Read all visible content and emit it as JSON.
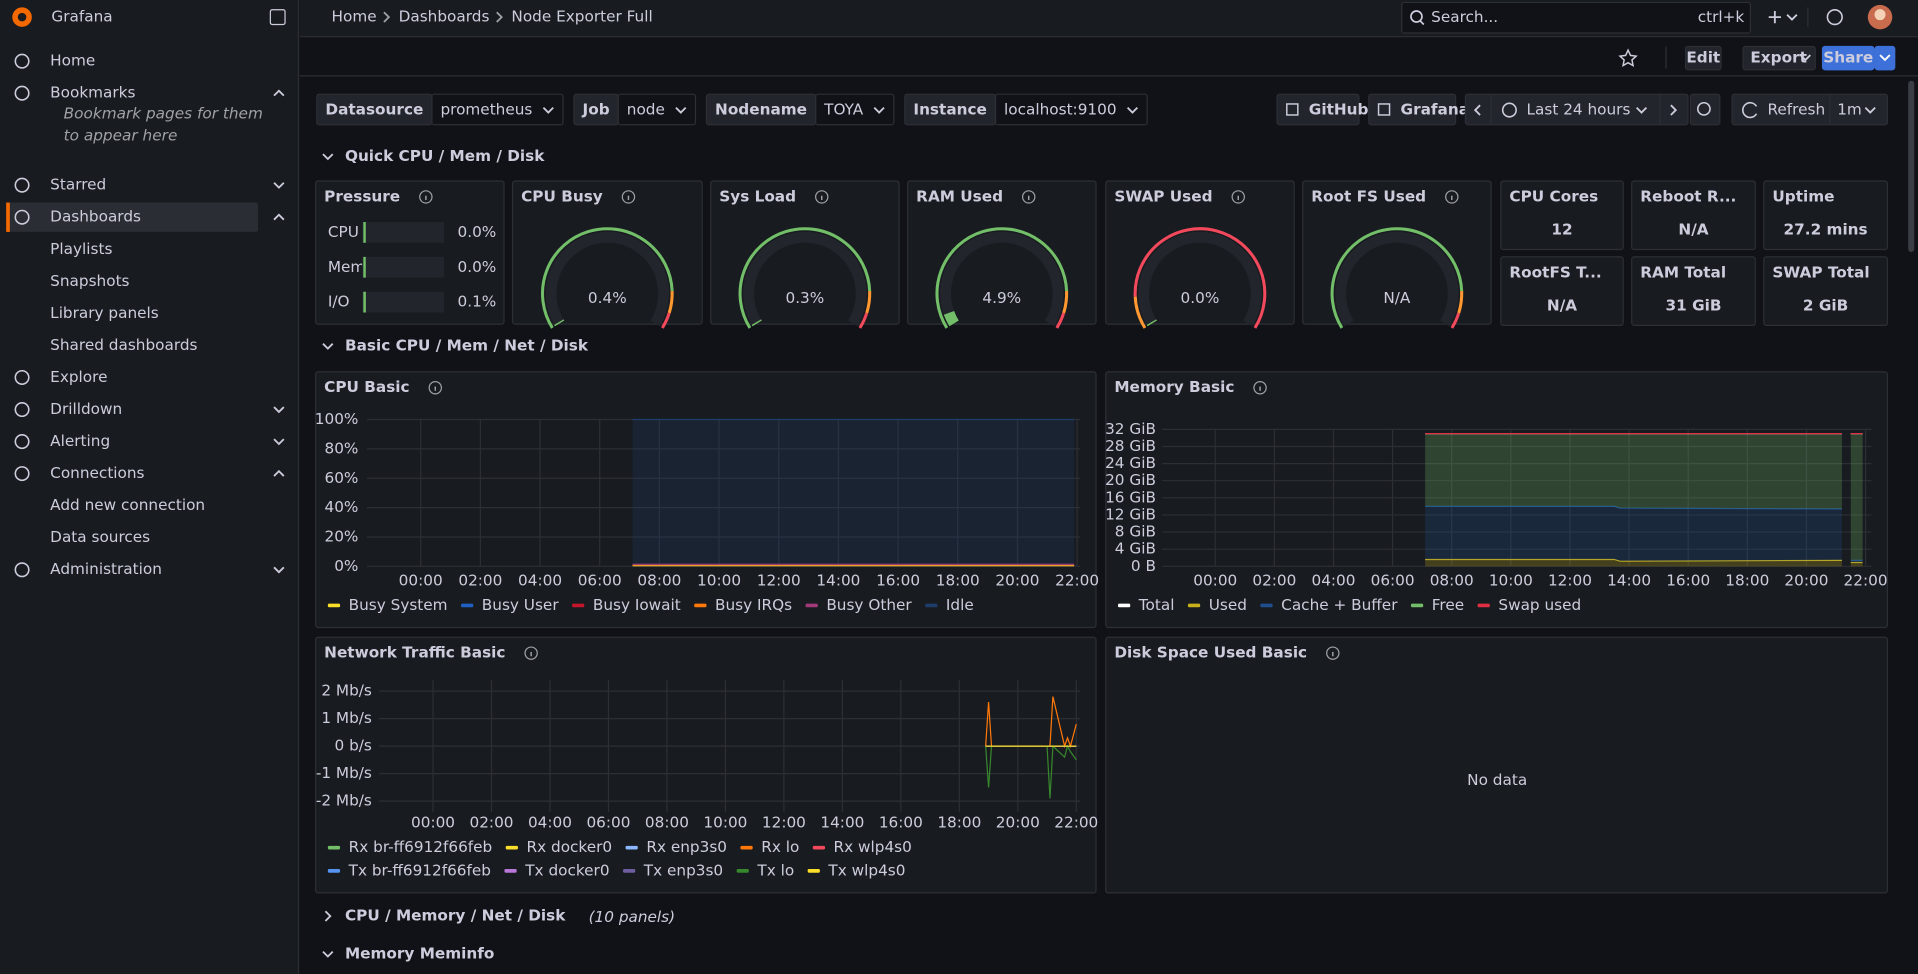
{
  "sidebar": {
    "brand": "Grafana",
    "items": [
      {
        "label": "Home"
      },
      {
        "label": "Bookmarks",
        "expanded": true,
        "note": "Bookmark pages for them to appear here"
      },
      {
        "label": "Starred",
        "expanded": false
      },
      {
        "label": "Dashboards",
        "expanded": true,
        "active": true,
        "children": [
          "Playlists",
          "Snapshots",
          "Library panels",
          "Shared dashboards"
        ]
      },
      {
        "label": "Explore"
      },
      {
        "label": "Drilldown",
        "expanded": false
      },
      {
        "label": "Alerting",
        "expanded": false
      },
      {
        "label": "Connections",
        "expanded": true,
        "children": [
          "Add new connection",
          "Data sources"
        ]
      },
      {
        "label": "Administration",
        "expanded": false
      }
    ]
  },
  "topbar": {
    "breadcrumbs": [
      "Home",
      "Dashboards",
      "Node Exporter Full"
    ],
    "search": "Search...",
    "shortcut": "ctrl+k"
  },
  "toolbar": {
    "edit": "Edit",
    "export": "Export",
    "share": "Share"
  },
  "variables": [
    {
      "label": "Datasource",
      "value": "prometheus"
    },
    {
      "label": "Job",
      "value": "node"
    },
    {
      "label": "Nodename",
      "value": "TOYA"
    },
    {
      "label": "Instance",
      "value": "localhost:9100"
    }
  ],
  "links": [
    "GitHub",
    "Grafana"
  ],
  "time_range": "Last 24 hours",
  "refresh": "Refresh",
  "refresh_interval": "1m",
  "rows": [
    {
      "title": "Quick CPU / Mem / Disk",
      "collapsed": false
    },
    {
      "title": "Basic CPU / Mem / Net / Disk",
      "collapsed": false
    },
    {
      "title": "CPU / Memory / Net / Disk",
      "collapsed": true,
      "count": "(10 panels)"
    },
    {
      "title": "Memory Meminfo",
      "collapsed": false
    }
  ],
  "panels": {
    "pressure": {
      "title": "Pressure",
      "items": [
        {
          "label": "CPU",
          "value": 0.0,
          "value_label": "0.0%"
        },
        {
          "label": "Mem",
          "value": 0.0,
          "value_label": "0.0%"
        },
        {
          "label": "I/O",
          "value": 0.1,
          "value_label": "0.1%"
        }
      ]
    },
    "gauges": [
      {
        "title": "CPU Busy",
        "value": 0.4,
        "value_label": "0.4%",
        "threshold_colors": [
          "#73bf69",
          "#ff9830",
          "#f2495c"
        ]
      },
      {
        "title": "Sys Load",
        "value": 0.3,
        "value_label": "0.3%",
        "threshold_colors": [
          "#73bf69",
          "#ff9830",
          "#f2495c"
        ]
      },
      {
        "title": "RAM Used",
        "value": 4.9,
        "value_label": "4.9%",
        "threshold_colors": [
          "#73bf69",
          "#ff9830",
          "#f2495c"
        ]
      },
      {
        "title": "SWAP Used",
        "value": 0.0,
        "value_label": "0.0%",
        "threshold_colors": [
          "#ff9830",
          "#f2495c"
        ]
      },
      {
        "title": "Root FS Used",
        "value": null,
        "value_label": "N/A",
        "threshold_colors": [
          "#73bf69",
          "#ff9830",
          "#f2495c"
        ]
      }
    ],
    "stats": [
      {
        "title": "CPU Cores",
        "value": "12"
      },
      {
        "title": "Reboot R...",
        "value": "N/A"
      },
      {
        "title": "Uptime",
        "value": "27.2 mins"
      },
      {
        "title": "RootFS T...",
        "value": "N/A"
      },
      {
        "title": "RAM Total",
        "value": "31 GiB"
      },
      {
        "title": "SWAP Total",
        "value": "2 GiB"
      }
    ],
    "charts": [
      {
        "type": "line",
        "title": "CPU Basic",
        "xlim": [
          -1.8,
          22.1
        ],
        "ylim": [
          0,
          100
        ],
        "xticks": [
          {
            "value": 0,
            "label": "00:00"
          },
          {
            "value": 2,
            "label": "02:00"
          },
          {
            "value": 4,
            "label": "04:00"
          },
          {
            "value": 6,
            "label": "06:00"
          },
          {
            "value": 8,
            "label": "08:00"
          },
          {
            "value": 10,
            "label": "10:00"
          },
          {
            "value": 12,
            "label": "12:00"
          },
          {
            "value": 14,
            "label": "14:00"
          },
          {
            "value": 16,
            "label": "16:00"
          },
          {
            "value": 18,
            "label": "18:00"
          },
          {
            "value": 20,
            "label": "20:00"
          },
          {
            "value": 22,
            "label": "22:00"
          }
        ],
        "yticks": [
          {
            "value": 0,
            "label": "0%"
          },
          {
            "value": 20,
            "label": "20%"
          },
          {
            "value": 40,
            "label": "40%"
          },
          {
            "value": 60,
            "label": "60%"
          },
          {
            "value": 80,
            "label": "80%"
          },
          {
            "value": 100,
            "label": "100%"
          }
        ],
        "x": [
          7.1,
          21.9
        ],
        "series": [
          {
            "name": "Busy System",
            "color": "#fade2a",
            "values": [
              0.5,
              0.5
            ],
            "stack": true
          },
          {
            "name": "Busy User",
            "color": "#1f60c4",
            "values": [
              0.5,
              0.5
            ],
            "stack": true
          },
          {
            "name": "Busy Iowait",
            "color": "#c4162a",
            "values": [
              0.1,
              0.1
            ],
            "stack": true
          },
          {
            "name": "Busy IRQs",
            "color": "#ff780a",
            "values": [
              0,
              0
            ],
            "stack": true
          },
          {
            "name": "Busy Other",
            "color": "#a1397a",
            "values": [
              0.3,
              0.3
            ],
            "stack": true
          },
          {
            "name": "Idle",
            "color": "#1f3d6b",
            "values": [
              98.6,
              98.6
            ],
            "stack": true
          }
        ]
      },
      {
        "type": "line",
        "title": "Memory Basic",
        "xlim": [
          -1.8,
          22.2
        ],
        "ylim": [
          0,
          32
        ],
        "xticks": [
          {
            "value": 0,
            "label": "00:00"
          },
          {
            "value": 2,
            "label": "02:00"
          },
          {
            "value": 4,
            "label": "04:00"
          },
          {
            "value": 6,
            "label": "06:00"
          },
          {
            "value": 8,
            "label": "08:00"
          },
          {
            "value": 10,
            "label": "10:00"
          },
          {
            "value": 12,
            "label": "12:00"
          },
          {
            "value": 14,
            "label": "14:00"
          },
          {
            "value": 16,
            "label": "16:00"
          },
          {
            "value": 18,
            "label": "18:00"
          },
          {
            "value": 20,
            "label": "20:00"
          },
          {
            "value": 22,
            "label": "22:00"
          }
        ],
        "yticks": [
          {
            "value": 0,
            "label": "0 B"
          },
          {
            "value": 4,
            "label": "4 GiB"
          },
          {
            "value": 8,
            "label": "8 GiB"
          },
          {
            "value": 12,
            "label": "12 GiB"
          },
          {
            "value": 16,
            "label": "16 GiB"
          },
          {
            "value": 20,
            "label": "20 GiB"
          },
          {
            "value": 24,
            "label": "24 GiB"
          },
          {
            "value": 28,
            "label": "28 GiB"
          },
          {
            "value": 32,
            "label": "32 GiB"
          }
        ],
        "x": [
          7.1,
          13.5,
          13.7,
          21.2,
          21.4,
          21.5,
          21.9
        ],
        "series": [
          {
            "name": "Total",
            "color": "#ffffff",
            "values": [
              31,
              31,
              31,
              31,
              null,
              31,
              31
            ],
            "stack": false
          },
          {
            "name": "Used",
            "color": "#c8b01c",
            "values": [
              1.6,
              1.6,
              1.2,
              1.4,
              null,
              0.9,
              0.9
            ],
            "stack": true
          },
          {
            "name": "Cache + Buffer",
            "color": "#1f4f8f",
            "values": [
              12.4,
              12.4,
              12.4,
              12.0,
              null,
              0.5,
              0.5
            ],
            "stack": true
          },
          {
            "name": "Free",
            "color": "#73bf69",
            "values": [
              17.0,
              17.0,
              17.4,
              17.6,
              null,
              29.6,
              29.6
            ],
            "stack": true
          },
          {
            "name": "Swap used",
            "color": "#e02f44",
            "values": [
              0,
              0,
              0,
              0,
              null,
              0,
              0
            ],
            "stack": true
          }
        ]
      },
      {
        "type": "line",
        "title": "Network Traffic Basic",
        "xlim": [
          -1.84,
          22.13
        ],
        "ylim": [
          -2.4,
          2.4
        ],
        "xticks": [
          {
            "value": 0,
            "label": "00:00"
          },
          {
            "value": 2,
            "label": "02:00"
          },
          {
            "value": 4,
            "label": "04:00"
          },
          {
            "value": 6,
            "label": "06:00"
          },
          {
            "value": 8,
            "label": "08:00"
          },
          {
            "value": 10,
            "label": "10:00"
          },
          {
            "value": 12,
            "label": "12:00"
          },
          {
            "value": 14,
            "label": "14:00"
          },
          {
            "value": 16,
            "label": "16:00"
          },
          {
            "value": 18,
            "label": "18:00"
          },
          {
            "value": 20,
            "label": "20:00"
          },
          {
            "value": 22,
            "label": "22:00"
          }
        ],
        "yticks": [
          {
            "value": -2,
            "label": "-2 Mb/s"
          },
          {
            "value": -1,
            "label": "-1 Mb/s"
          },
          {
            "value": 0,
            "label": "0 b/s"
          },
          {
            "value": 1,
            "label": "1 Mb/s"
          },
          {
            "value": 2,
            "label": "2 Mb/s"
          }
        ],
        "x": [
          18.9,
          19.0,
          19.1,
          21.0,
          21.1,
          21.2,
          21.6,
          21.7,
          21.8,
          22.0
        ],
        "series": [
          {
            "name": "Rx br-ff6912f66feb",
            "color": "#73bf69",
            "values": [
              0,
              0,
              0,
              0,
              0,
              0,
              0,
              0,
              0,
              0
            ],
            "stack": false
          },
          {
            "name": "Rx docker0",
            "color": "#fade2a",
            "values": [
              0,
              0,
              0,
              0,
              0,
              0,
              0,
              0,
              0,
              0
            ],
            "stack": false
          },
          {
            "name": "Rx enp3s0",
            "color": "#8ab8ff",
            "values": [
              0,
              0,
              0,
              0,
              0,
              0,
              0,
              0,
              0,
              0
            ],
            "stack": false
          },
          {
            "name": "Rx lo",
            "color": "#ff780a",
            "values": [
              0,
              1.6,
              0,
              0,
              0,
              1.8,
              0,
              0.3,
              0,
              0.8
            ],
            "stack": false
          },
          {
            "name": "Rx wlp4s0",
            "color": "#f2495c",
            "values": [
              0,
              0,
              0,
              0,
              0,
              0,
              0,
              0,
              0,
              0
            ],
            "stack": false
          },
          {
            "name": "Tx br-ff6912f66feb",
            "color": "#5794f2",
            "values": [
              0,
              0,
              0,
              0,
              0,
              0,
              0,
              0,
              0,
              0
            ],
            "stack": false
          },
          {
            "name": "Tx docker0",
            "color": "#b877d9",
            "values": [
              0,
              0,
              0,
              0,
              0,
              0,
              0,
              0,
              0,
              0
            ],
            "stack": false
          },
          {
            "name": "Tx enp3s0",
            "color": "#705da0",
            "values": [
              0,
              0,
              0,
              0,
              0,
              0,
              0,
              0,
              0,
              0
            ],
            "stack": false
          },
          {
            "name": "Tx lo",
            "color": "#37872d",
            "values": [
              0,
              -1.5,
              0,
              0,
              -1.9,
              0,
              -0.4,
              0,
              -0.2,
              -0.5
            ],
            "stack": false
          },
          {
            "name": "Tx wlp4s0",
            "color": "#fade2a",
            "values": [
              0,
              0,
              0,
              0,
              0,
              0,
              0,
              0,
              0,
              0
            ],
            "stack": false
          }
        ]
      }
    ],
    "disk": {
      "title": "Disk Space Used Basic",
      "message": "No data"
    }
  }
}
